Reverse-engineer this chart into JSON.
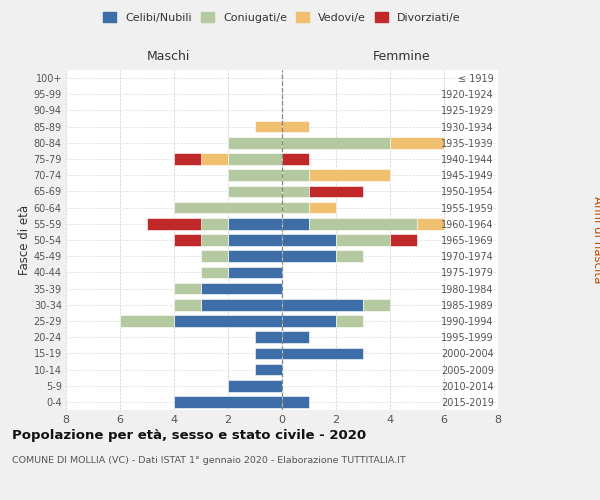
{
  "age_groups": [
    "100+",
    "95-99",
    "90-94",
    "85-89",
    "80-84",
    "75-79",
    "70-74",
    "65-69",
    "60-64",
    "55-59",
    "50-54",
    "45-49",
    "40-44",
    "35-39",
    "30-34",
    "25-29",
    "20-24",
    "15-19",
    "10-14",
    "5-9",
    "0-4"
  ],
  "birth_years": [
    "≤ 1919",
    "1920-1924",
    "1925-1929",
    "1930-1934",
    "1935-1939",
    "1940-1944",
    "1945-1949",
    "1950-1954",
    "1955-1959",
    "1960-1964",
    "1965-1969",
    "1970-1974",
    "1975-1979",
    "1980-1984",
    "1985-1989",
    "1990-1994",
    "1995-1999",
    "2000-2004",
    "2005-2009",
    "2010-2014",
    "2015-2019"
  ],
  "males": {
    "celibi": [
      0,
      0,
      0,
      0,
      0,
      0,
      0,
      0,
      0,
      2,
      2,
      2,
      2,
      3,
      3,
      4,
      1,
      1,
      1,
      2,
      4
    ],
    "coniugati": [
      0,
      0,
      0,
      0,
      2,
      2,
      2,
      2,
      4,
      1,
      1,
      1,
      1,
      1,
      1,
      2,
      0,
      0,
      0,
      0,
      0
    ],
    "vedovi": [
      0,
      0,
      0,
      1,
      0,
      1,
      0,
      0,
      0,
      0,
      0,
      0,
      0,
      0,
      0,
      0,
      0,
      0,
      0,
      0,
      0
    ],
    "divorziati": [
      0,
      0,
      0,
      0,
      0,
      1,
      0,
      0,
      0,
      2,
      1,
      0,
      0,
      0,
      0,
      0,
      0,
      0,
      0,
      0,
      0
    ]
  },
  "females": {
    "celibi": [
      0,
      0,
      0,
      0,
      0,
      0,
      0,
      0,
      0,
      1,
      2,
      2,
      0,
      0,
      3,
      2,
      1,
      3,
      0,
      0,
      1
    ],
    "coniugati": [
      0,
      0,
      0,
      0,
      4,
      0,
      1,
      1,
      1,
      4,
      2,
      1,
      0,
      0,
      1,
      1,
      0,
      0,
      0,
      0,
      0
    ],
    "vedovi": [
      0,
      0,
      0,
      1,
      2,
      0,
      3,
      0,
      1,
      1,
      0,
      0,
      0,
      0,
      0,
      0,
      0,
      0,
      0,
      0,
      0
    ],
    "divorziati": [
      0,
      0,
      0,
      0,
      0,
      1,
      0,
      2,
      0,
      0,
      1,
      0,
      0,
      0,
      0,
      0,
      0,
      0,
      0,
      0,
      0
    ]
  },
  "colors": {
    "celibi": "#3d6ea8",
    "coniugati": "#b5c9a1",
    "vedovi": "#f0c070",
    "divorziati": "#c0282a"
  },
  "xlim": [
    -8,
    8
  ],
  "xticks": [
    -8,
    -6,
    -4,
    -2,
    0,
    2,
    4,
    6,
    8
  ],
  "xtick_labels": [
    "8",
    "6",
    "4",
    "2",
    "0",
    "2",
    "4",
    "6",
    "8"
  ],
  "title": "Popolazione per età, sesso e stato civile - 2020",
  "subtitle": "COMUNE DI MOLLIA (VC) - Dati ISTAT 1° gennaio 2020 - Elaborazione TUTTITALIA.IT",
  "ylabel_left": "Fasce di età",
  "ylabel_right": "Anni di nascita",
  "label_maschi": "Maschi",
  "label_femmine": "Femmine",
  "legend_labels": [
    "Celibi/Nubili",
    "Coniugati/e",
    "Vedovi/e",
    "Divorziati/e"
  ],
  "bg_color": "#f0f0f0",
  "plot_bg_color": "#ffffff"
}
